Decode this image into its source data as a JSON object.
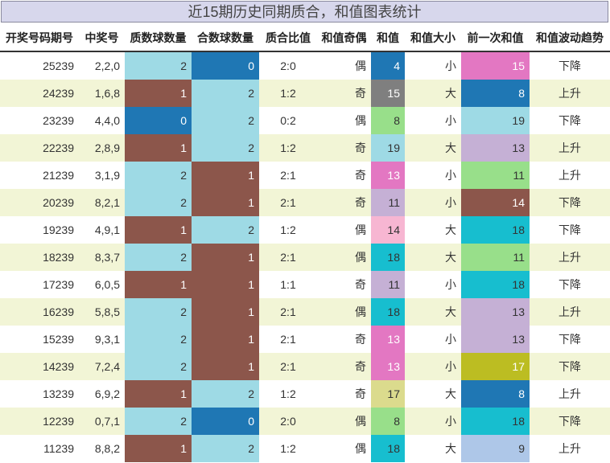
{
  "title": "近15期历史同期质合，和值图表统计",
  "chart_data": {
    "type": "table",
    "title": "近15期历史同期质合，和值图表统计",
    "columns": [
      "开奖号码期号",
      "中奖号",
      "质数球数量",
      "合数球数量",
      "质合比值",
      "和值奇偶",
      "和值",
      "和值大小",
      "前一次和值",
      "和值波动趋势"
    ],
    "rows": [
      [
        "25239",
        "2,2,0",
        2,
        0,
        "2:0",
        "偶",
        4,
        "小",
        15,
        "下降"
      ],
      [
        "24239",
        "1,6,8",
        1,
        2,
        "1:2",
        "奇",
        15,
        "大",
        8,
        "上升"
      ],
      [
        "23239",
        "4,4,0",
        0,
        2,
        "0:2",
        "偶",
        8,
        "小",
        19,
        "下降"
      ],
      [
        "22239",
        "2,8,9",
        1,
        2,
        "1:2",
        "奇",
        19,
        "大",
        13,
        "上升"
      ],
      [
        "21239",
        "3,1,9",
        2,
        1,
        "2:1",
        "奇",
        13,
        "小",
        11,
        "上升"
      ],
      [
        "20239",
        "8,2,1",
        2,
        1,
        "2:1",
        "奇",
        11,
        "小",
        14,
        "下降"
      ],
      [
        "19239",
        "4,9,1",
        1,
        2,
        "1:2",
        "偶",
        14,
        "大",
        18,
        "下降"
      ],
      [
        "18239",
        "8,3,7",
        2,
        1,
        "2:1",
        "偶",
        18,
        "大",
        11,
        "上升"
      ],
      [
        "17239",
        "6,0,5",
        1,
        1,
        "1:1",
        "奇",
        11,
        "小",
        18,
        "下降"
      ],
      [
        "16239",
        "5,8,5",
        2,
        1,
        "2:1",
        "偶",
        18,
        "大",
        13,
        "上升"
      ],
      [
        "15239",
        "9,3,1",
        2,
        1,
        "2:1",
        "奇",
        13,
        "小",
        13,
        "下降"
      ],
      [
        "14239",
        "7,2,4",
        2,
        1,
        "2:1",
        "奇",
        13,
        "小",
        17,
        "下降"
      ],
      [
        "13239",
        "6,9,2",
        1,
        2,
        "1:2",
        "奇",
        17,
        "大",
        8,
        "上升"
      ],
      [
        "12239",
        "0,7,1",
        2,
        0,
        "2:0",
        "偶",
        8,
        "小",
        18,
        "下降"
      ],
      [
        "11239",
        "8,8,2",
        1,
        2,
        "1:2",
        "偶",
        18,
        "大",
        9,
        "上升"
      ]
    ]
  },
  "colors": {
    "count": {
      "0": "#1f77b4",
      "1": "#8c564b",
      "2": "#9edae5"
    },
    "sum": {
      "4": "#1f77b4",
      "8": "#98df8a",
      "9": "#aec7e8",
      "11": "#c5b0d5",
      "13": "#e377c2",
      "14": "#f7b6d2",
      "15": "#7f7f7f",
      "17": "#dbdb8d",
      "18": "#17becf",
      "19": "#9edae5"
    },
    "prev_sum": {
      "8": "#1f77b4",
      "9": "#aec7e8",
      "11": "#98df8a",
      "13": "#c5b0d5",
      "14": "#8c564b",
      "15": "#e377c2",
      "17": "#bcbd22",
      "18": "#17becf",
      "19": "#9edae5"
    }
  }
}
